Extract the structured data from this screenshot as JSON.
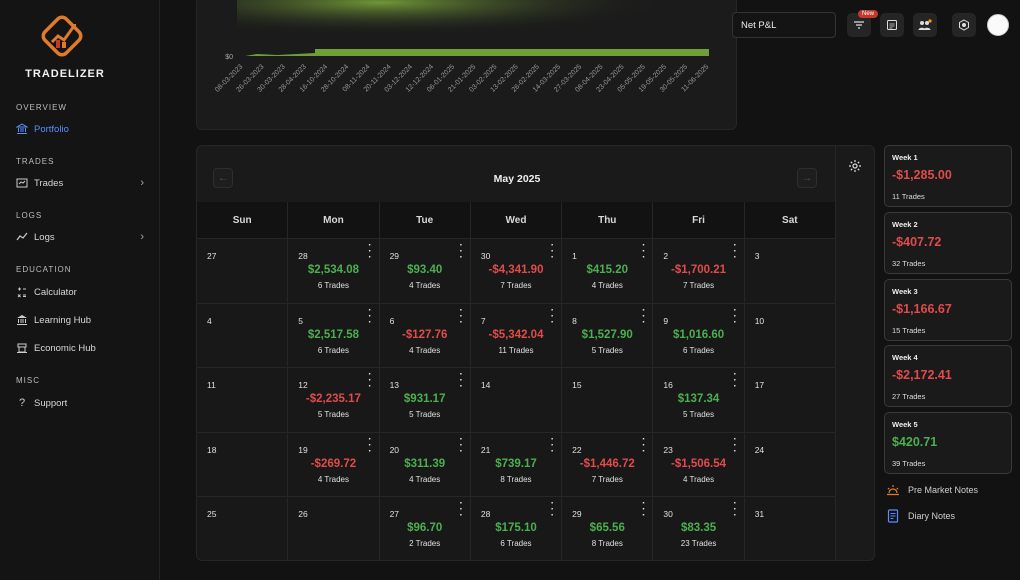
{
  "brand": {
    "name": "TRADELIZER"
  },
  "sidebar": {
    "sections": [
      {
        "title": "OVERVIEW"
      },
      {
        "title": "TRADES"
      },
      {
        "title": "LOGS"
      },
      {
        "title": "EDUCATION"
      },
      {
        "title": "MISC"
      }
    ],
    "items": [
      {
        "label": "Portfolio",
        "icon": "bank-icon",
        "active": true
      },
      {
        "label": "Trades",
        "icon": "trades-icon"
      },
      {
        "label": "Logs",
        "icon": "chart-line-icon"
      },
      {
        "label": "Calculator",
        "icon": "calculator-icon"
      },
      {
        "label": "Learning Hub",
        "icon": "building-icon"
      },
      {
        "label": "Economic Hub",
        "icon": "globe-icon"
      },
      {
        "label": "Support",
        "icon": "question-icon"
      }
    ]
  },
  "topbar": {
    "metric_select": "Net P&L",
    "new_badge": "New"
  },
  "chart": {
    "y_tick": "$0",
    "x_ticks": [
      "08-03-2023",
      "26-03-2023",
      "30-03-2023",
      "28-04-2023",
      "16-10-2024",
      "28-10-2024",
      "08-11-2024",
      "20-11-2024",
      "03-12-2024",
      "12-12-2024",
      "06-01-2025",
      "21-01-2025",
      "03-02-2025",
      "13-02-2025",
      "26-02-2025",
      "14-03-2025",
      "27-03-2025",
      "08-04-2025",
      "23-04-2025",
      "05-05-2025",
      "19-05-2025",
      "30-05-2025",
      "11-06-2025"
    ]
  },
  "calendar": {
    "month": "May 2025",
    "prev_arrow": "←",
    "next_arrow": "→",
    "days_of_week": [
      "Sun",
      "Mon",
      "Tue",
      "Wed",
      "Thu",
      "Fri",
      "Sat"
    ],
    "weeks": [
      [
        {
          "day": "27"
        },
        {
          "day": "28",
          "pnl": "$2,534.08",
          "trades": "6 Trades",
          "tone": "pos"
        },
        {
          "day": "29",
          "pnl": "$93.40",
          "trades": "4 Trades",
          "tone": "pos"
        },
        {
          "day": "30",
          "pnl": "-$4,341.90",
          "trades": "7 Trades",
          "tone": "neg"
        },
        {
          "day": "1",
          "pnl": "$415.20",
          "trades": "4 Trades",
          "tone": "pos"
        },
        {
          "day": "2",
          "pnl": "-$1,700.21",
          "trades": "7 Trades",
          "tone": "neg"
        },
        {
          "day": "3"
        }
      ],
      [
        {
          "day": "4"
        },
        {
          "day": "5",
          "pnl": "$2,517.58",
          "trades": "6 Trades",
          "tone": "pos"
        },
        {
          "day": "6",
          "pnl": "-$127.76",
          "trades": "4 Trades",
          "tone": "neg"
        },
        {
          "day": "7",
          "pnl": "-$5,342.04",
          "trades": "11 Trades",
          "tone": "neg"
        },
        {
          "day": "8",
          "pnl": "$1,527.90",
          "trades": "5 Trades",
          "tone": "pos"
        },
        {
          "day": "9",
          "pnl": "$1,016.60",
          "trades": "6 Trades",
          "tone": "pos"
        },
        {
          "day": "10"
        }
      ],
      [
        {
          "day": "11"
        },
        {
          "day": "12",
          "pnl": "-$2,235.17",
          "trades": "5 Trades",
          "tone": "neg"
        },
        {
          "day": "13",
          "pnl": "$931.17",
          "trades": "5 Trades",
          "tone": "pos"
        },
        {
          "day": "14"
        },
        {
          "day": "15"
        },
        {
          "day": "16",
          "pnl": "$137.34",
          "trades": "5 Trades",
          "tone": "pos"
        },
        {
          "day": "17"
        }
      ],
      [
        {
          "day": "18"
        },
        {
          "day": "19",
          "pnl": "-$269.72",
          "trades": "4 Trades",
          "tone": "neg"
        },
        {
          "day": "20",
          "pnl": "$311.39",
          "trades": "4 Trades",
          "tone": "pos"
        },
        {
          "day": "21",
          "pnl": "$739.17",
          "trades": "8 Trades",
          "tone": "pos"
        },
        {
          "day": "22",
          "pnl": "-$1,446.72",
          "trades": "7 Trades",
          "tone": "neg"
        },
        {
          "day": "23",
          "pnl": "-$1,506.54",
          "trades": "4 Trades",
          "tone": "neg"
        },
        {
          "day": "24"
        }
      ],
      [
        {
          "day": "25"
        },
        {
          "day": "26"
        },
        {
          "day": "27",
          "pnl": "$96.70",
          "trades": "2 Trades",
          "tone": "pos"
        },
        {
          "day": "28",
          "pnl": "$175.10",
          "trades": "6 Trades",
          "tone": "pos"
        },
        {
          "day": "29",
          "pnl": "$65.56",
          "trades": "8 Trades",
          "tone": "pos"
        },
        {
          "day": "30",
          "pnl": "$83.35",
          "trades": "23 Trades",
          "tone": "pos"
        },
        {
          "day": "31"
        }
      ]
    ]
  },
  "weekly_summary": [
    {
      "title": "Week 1",
      "value": "-$1,285.00",
      "trades": "11 Trades",
      "tone": "neg"
    },
    {
      "title": "Week 2",
      "value": "-$407.72",
      "trades": "32 Trades",
      "tone": "neg"
    },
    {
      "title": "Week 3",
      "value": "-$1,166.67",
      "trades": "15 Trades",
      "tone": "neg"
    },
    {
      "title": "Week 4",
      "value": "-$2,172.41",
      "trades": "27 Trades",
      "tone": "neg"
    },
    {
      "title": "Week 5",
      "value": "$420.71",
      "trades": "39 Trades",
      "tone": "pos"
    }
  ],
  "notes": {
    "pre_market": "Pre Market Notes",
    "diary": "Diary Notes"
  },
  "colors": {
    "positive": "#4caf50",
    "negative": "#e14b4b",
    "accent": "#5a8cff",
    "brand": "#e07b2b"
  }
}
